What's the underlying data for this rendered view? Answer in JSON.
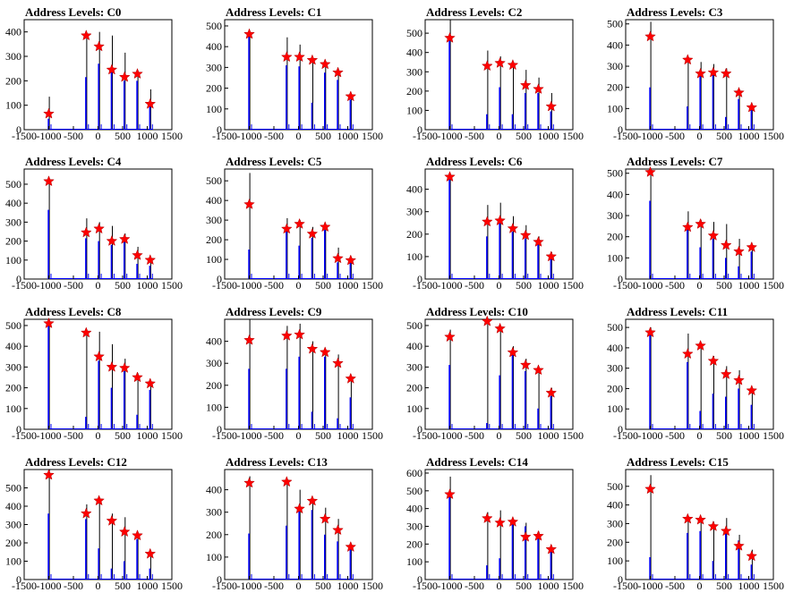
{
  "chart_data": {
    "type": "bar",
    "layout": "grid of 16 histogram panels (4 rows x 4 columns)",
    "xlim": [
      -1500,
      1500
    ],
    "x_ticks": [
      "-1500",
      "-1000",
      "-500",
      "0",
      "500",
      "1000",
      "1500"
    ],
    "marker_color": "#ff0000",
    "bar_colors": [
      "#0000ff",
      "#000000"
    ],
    "panels": [
      {
        "title": "Address Levels: C0",
        "ylim": [
          0,
          450
        ],
        "y_ticks": [
          "0",
          "100",
          "200",
          "300",
          "400"
        ],
        "peaks_x": [
          -1000,
          -240,
          20,
          280,
          540,
          800,
          1060
        ],
        "black": [
          135,
          395,
          400,
          385,
          315,
          240,
          165
        ],
        "blue": [
          45,
          215,
          270,
          250,
          200,
          200,
          95
        ],
        "markers": [
          65,
          385,
          340,
          245,
          215,
          228,
          105
        ]
      },
      {
        "title": "Address Levels: C1",
        "ylim": [
          0,
          530
        ],
        "y_ticks": [
          "0",
          "100",
          "200",
          "300",
          "400",
          "500"
        ],
        "peaks_x": [
          -1000,
          -240,
          20,
          280,
          540,
          800,
          1060
        ],
        "black": [
          465,
          445,
          410,
          350,
          330,
          295,
          170
        ],
        "blue": [
          465,
          310,
          305,
          130,
          275,
          240,
          145
        ],
        "markers": [
          460,
          350,
          350,
          335,
          315,
          275,
          160
        ]
      },
      {
        "title": "Address Levels: C2",
        "ylim": [
          0,
          570
        ],
        "y_ticks": [
          "0",
          "100",
          "200",
          "300",
          "400",
          "500"
        ],
        "peaks_x": [
          -1000,
          -240,
          20,
          280,
          540,
          800,
          1060
        ],
        "black": [
          570,
          410,
          380,
          350,
          310,
          270,
          190
        ],
        "blue": [
          470,
          80,
          220,
          80,
          190,
          190,
          95
        ],
        "markers": [
          475,
          330,
          345,
          335,
          230,
          210,
          120
        ]
      },
      {
        "title": "Address Levels: C3",
        "ylim": [
          0,
          520
        ],
        "y_ticks": [
          "0",
          "100",
          "200",
          "300",
          "400",
          "500"
        ],
        "peaks_x": [
          -1000,
          -240,
          20,
          280,
          540,
          800,
          1060
        ],
        "black": [
          510,
          330,
          320,
          310,
          290,
          190,
          100
        ],
        "blue": [
          200,
          110,
          270,
          260,
          60,
          145,
          95
        ],
        "markers": [
          440,
          330,
          265,
          270,
          265,
          175,
          105
        ]
      },
      {
        "title": "Address Levels: C4",
        "ylim": [
          0,
          580
        ],
        "y_ticks": [
          "0",
          "100",
          "200",
          "300",
          "400",
          "500"
        ],
        "peaks_x": [
          -1000,
          -240,
          20,
          280,
          540,
          800,
          1060
        ],
        "black": [
          520,
          320,
          300,
          280,
          240,
          170,
          110
        ],
        "blue": [
          365,
          215,
          200,
          180,
          200,
          80,
          70
        ],
        "markers": [
          515,
          245,
          265,
          200,
          210,
          125,
          100
        ]
      },
      {
        "title": "Address Levels: C5",
        "ylim": [
          0,
          560
        ],
        "y_ticks": [
          "0",
          "100",
          "200",
          "300",
          "400",
          "500"
        ],
        "peaks_x": [
          -1000,
          -240,
          20,
          280,
          540,
          800,
          1060
        ],
        "black": [
          540,
          310,
          300,
          265,
          280,
          160,
          100
        ],
        "blue": [
          150,
          250,
          170,
          210,
          250,
          85,
          85
        ],
        "markers": [
          380,
          255,
          280,
          230,
          265,
          105,
          95
        ]
      },
      {
        "title": "Address Levels: C6",
        "ylim": [
          0,
          490
        ],
        "y_ticks": [
          "0",
          "100",
          "200",
          "300",
          "400"
        ],
        "peaks_x": [
          -1000,
          -240,
          20,
          280,
          540,
          800,
          1060
        ],
        "black": [
          460,
          330,
          340,
          280,
          240,
          190,
          120
        ],
        "blue": [
          460,
          190,
          250,
          210,
          180,
          160,
          95
        ],
        "markers": [
          455,
          255,
          260,
          225,
          195,
          165,
          100
        ]
      },
      {
        "title": "Address Levels: C7",
        "ylim": [
          0,
          520
        ],
        "y_ticks": [
          "0",
          "100",
          "200",
          "300",
          "400",
          "500"
        ],
        "peaks_x": [
          -1000,
          -240,
          20,
          280,
          540,
          800,
          1060
        ],
        "black": [
          520,
          320,
          280,
          270,
          260,
          190,
          160
        ],
        "blue": [
          370,
          235,
          150,
          190,
          100,
          60,
          130
        ],
        "markers": [
          505,
          245,
          260,
          205,
          160,
          130,
          150
        ]
      },
      {
        "title": "Address Levels: C8",
        "ylim": [
          0,
          530
        ],
        "y_ticks": [
          "0",
          "100",
          "200",
          "300",
          "400",
          "500"
        ],
        "peaks_x": [
          -1000,
          -240,
          20,
          280,
          540,
          800,
          1060
        ],
        "black": [
          520,
          470,
          470,
          410,
          340,
          270,
          230
        ],
        "blue": [
          520,
          60,
          330,
          200,
          280,
          70,
          190
        ],
        "markers": [
          510,
          465,
          350,
          300,
          295,
          250,
          220
        ]
      },
      {
        "title": "Address Levels: C9",
        "ylim": [
          0,
          500
        ],
        "y_ticks": [
          "0",
          "100",
          "200",
          "300",
          "400"
        ],
        "peaks_x": [
          -1000,
          -240,
          20,
          280,
          540,
          800,
          1060
        ],
        "black": [
          500,
          470,
          480,
          400,
          360,
          340,
          240
        ],
        "blue": [
          275,
          275,
          330,
          80,
          330,
          50,
          145
        ],
        "markers": [
          405,
          425,
          430,
          365,
          350,
          300,
          230
        ]
      },
      {
        "title": "Address Levels: C10",
        "ylim": [
          0,
          530
        ],
        "y_ticks": [
          "0",
          "100",
          "200",
          "300",
          "400",
          "500"
        ],
        "peaks_x": [
          -1000,
          -240,
          20,
          280,
          540,
          800,
          1060
        ],
        "black": [
          480,
          530,
          490,
          400,
          340,
          300,
          200
        ],
        "blue": [
          310,
          30,
          260,
          360,
          280,
          100,
          160
        ],
        "markers": [
          445,
          520,
          485,
          370,
          310,
          285,
          175
        ]
      },
      {
        "title": "Address Levels: C11",
        "ylim": [
          0,
          540
        ],
        "y_ticks": [
          "0",
          "100",
          "200",
          "300",
          "400",
          "500"
        ],
        "peaks_x": [
          -1000,
          -240,
          20,
          280,
          540,
          800,
          1060
        ],
        "black": [
          500,
          470,
          420,
          360,
          310,
          290,
          200
        ],
        "blue": [
          470,
          330,
          90,
          175,
          160,
          200,
          120
        ],
        "markers": [
          475,
          370,
          410,
          335,
          270,
          240,
          190
        ]
      },
      {
        "title": "Address Levels: C12",
        "ylim": [
          0,
          600
        ],
        "y_ticks": [
          "0",
          "100",
          "200",
          "300",
          "400",
          "500"
        ],
        "peaks_x": [
          -1000,
          -240,
          20,
          280,
          540,
          800,
          1060
        ],
        "black": [
          600,
          410,
          440,
          360,
          340,
          260,
          160
        ],
        "blue": [
          360,
          330,
          170,
          60,
          100,
          220,
          60
        ],
        "markers": [
          570,
          360,
          430,
          320,
          260,
          240,
          140
        ]
      },
      {
        "title": "Address Levels: C13",
        "ylim": [
          0,
          490
        ],
        "y_ticks": [
          "0",
          "100",
          "200",
          "300",
          "400"
        ],
        "peaks_x": [
          -1000,
          -240,
          20,
          280,
          540,
          800,
          1060
        ],
        "black": [
          460,
          430,
          400,
          360,
          320,
          270,
          160
        ],
        "blue": [
          205,
          240,
          320,
          310,
          200,
          170,
          150
        ],
        "markers": [
          430,
          435,
          315,
          350,
          270,
          220,
          145
        ]
      },
      {
        "title": "Address Levels: C14",
        "ylim": [
          0,
          620
        ],
        "y_ticks": [
          "0",
          "100",
          "200",
          "300",
          "400",
          "500",
          "600"
        ],
        "peaks_x": [
          -1000,
          -240,
          20,
          280,
          540,
          800,
          1060
        ],
        "black": [
          580,
          380,
          390,
          340,
          320,
          270,
          190
        ],
        "blue": [
          470,
          80,
          120,
          310,
          300,
          230,
          170
        ],
        "markers": [
          480,
          345,
          320,
          325,
          240,
          245,
          170
        ]
      },
      {
        "title": "Address Levels: C15",
        "ylim": [
          0,
          590
        ],
        "y_ticks": [
          "0",
          "100",
          "200",
          "300",
          "400",
          "500"
        ],
        "peaks_x": [
          -1000,
          -240,
          20,
          280,
          540,
          800,
          1060
        ],
        "black": [
          560,
          340,
          330,
          310,
          330,
          240,
          160
        ],
        "blue": [
          120,
          250,
          260,
          100,
          260,
          210,
          80
        ],
        "markers": [
          485,
          325,
          320,
          285,
          260,
          180,
          125
        ]
      }
    ]
  }
}
